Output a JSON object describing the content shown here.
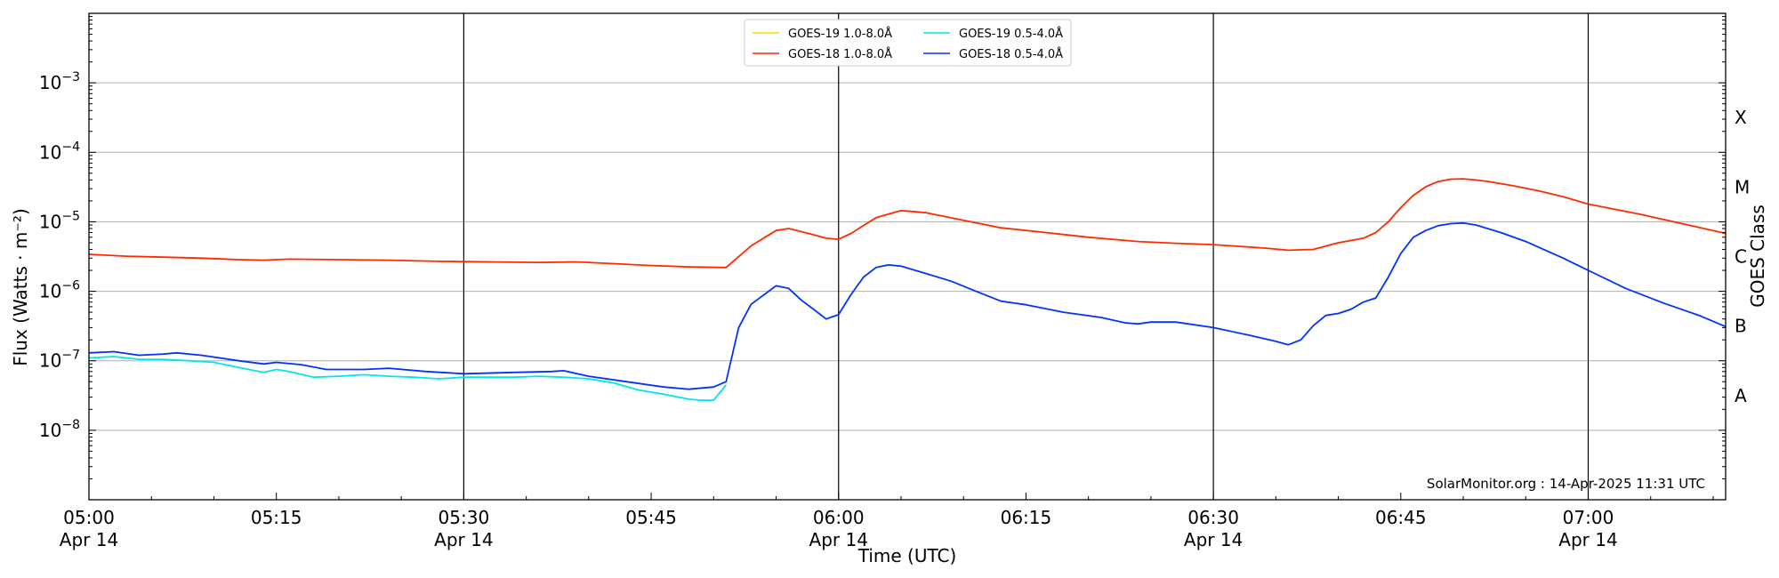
{
  "chart_data": {
    "type": "line",
    "ylabel": "Flux (Watts · m⁻²)",
    "xlabel": "Time (UTC)",
    "right_ylabel": "GOES Class",
    "watermark": "SolarMonitor.org : 14-Apr-2025 11:31 UTC",
    "y_scale": "log",
    "ylim": [
      1e-09,
      0.01
    ],
    "xlim": [
      "05:00",
      "07:11"
    ],
    "grid": "horizontal",
    "legend_position": "top-center",
    "y_ticks": [
      {
        "value": 1e-08,
        "base": "10",
        "exp": "−8"
      },
      {
        "value": 1e-07,
        "base": "10",
        "exp": "−7"
      },
      {
        "value": 1e-06,
        "base": "10",
        "exp": "−6"
      },
      {
        "value": 1e-05,
        "base": "10",
        "exp": "−5"
      },
      {
        "value": 0.0001,
        "base": "10",
        "exp": "−4"
      },
      {
        "value": 0.001,
        "base": "10",
        "exp": "−3"
      }
    ],
    "x_ticks": [
      {
        "time": "05:00",
        "label": "05:00",
        "sub": "Apr 14"
      },
      {
        "time": "05:15",
        "label": "05:15",
        "sub": ""
      },
      {
        "time": "05:30",
        "label": "05:30",
        "sub": "Apr 14"
      },
      {
        "time": "05:45",
        "label": "05:45",
        "sub": ""
      },
      {
        "time": "06:00",
        "label": "06:00",
        "sub": "Apr 14"
      },
      {
        "time": "06:15",
        "label": "06:15",
        "sub": ""
      },
      {
        "time": "06:30",
        "label": "06:30",
        "sub": "Apr 14"
      },
      {
        "time": "06:45",
        "label": "06:45",
        "sub": ""
      },
      {
        "time": "07:00",
        "label": "07:00",
        "sub": "Apr 14"
      }
    ],
    "vertical_lines": [
      "05:30",
      "06:00",
      "06:30",
      "07:00"
    ],
    "goes_classes": [
      {
        "label": "A",
        "flux": 1e-08
      },
      {
        "label": "B",
        "flux": 1e-07
      },
      {
        "label": "C",
        "flux": 1e-06
      },
      {
        "label": "M",
        "flux": 1e-05
      },
      {
        "label": "X",
        "flux": 0.0001
      }
    ],
    "series": [
      {
        "name": "GOES-19 1.0-8.0Å",
        "color": "#ffd700",
        "x": [],
        "y": []
      },
      {
        "name": "GOES-18 1.0-8.0Å",
        "color": "#ff2a00",
        "x": [
          "05:00",
          "05:03",
          "05:06",
          "05:09",
          "05:12",
          "05:14",
          "05:16",
          "05:20",
          "05:24",
          "05:28",
          "05:32",
          "05:36",
          "05:39",
          "05:42",
          "05:45",
          "05:48",
          "05:51",
          "05:53",
          "05:55",
          "05:56",
          "05:58",
          "05:59",
          "06:00",
          "06:01",
          "06:03",
          "06:05",
          "06:07",
          "06:10",
          "06:13",
          "06:16",
          "06:20",
          "06:24",
          "06:27",
          "06:30",
          "06:34",
          "06:36",
          "06:38",
          "06:40",
          "06:42",
          "06:43",
          "06:44",
          "06:45",
          "06:46",
          "06:47",
          "06:48",
          "06:49",
          "06:50",
          "06:51",
          "06:52",
          "06:54",
          "06:56",
          "06:58",
          "07:00",
          "07:04",
          "07:08",
          "07:11"
        ],
        "y": [
          3.4e-06,
          3.2e-06,
          3.1e-06,
          3e-06,
          2.85e-06,
          2.8e-06,
          2.9e-06,
          2.85e-06,
          2.8e-06,
          2.7e-06,
          2.65e-06,
          2.6e-06,
          2.65e-06,
          2.5e-06,
          2.35e-06,
          2.25e-06,
          2.2e-06,
          4.5e-06,
          7.5e-06,
          8e-06,
          6.5e-06,
          5.8e-06,
          5.6e-06,
          6.8e-06,
          1.15e-05,
          1.45e-05,
          1.35e-05,
          1.05e-05,
          8.2e-06,
          7.2e-06,
          6e-06,
          5.2e-06,
          4.9e-06,
          4.7e-06,
          4.2e-06,
          3.9e-06,
          4e-06,
          5e-06,
          5.8e-06,
          7e-06,
          1e-05,
          1.6e-05,
          2.4e-05,
          3.2e-05,
          3.8e-05,
          4.1e-05,
          4.15e-05,
          4e-05,
          3.8e-05,
          3.3e-05,
          2.8e-05,
          2.3e-05,
          1.8e-05,
          1.3e-05,
          9e-06,
          6.8e-06
        ]
      },
      {
        "name": "GOES-19 0.5-4.0Å",
        "color": "#00e5ee",
        "x": [
          "05:00",
          "05:02",
          "05:04",
          "05:06",
          "05:08",
          "05:10",
          "05:12",
          "05:14",
          "05:15",
          "05:16",
          "05:18",
          "05:20",
          "05:22",
          "05:24",
          "05:26",
          "05:28",
          "05:30",
          "05:32",
          "05:34",
          "05:36",
          "05:38",
          "05:40",
          "05:42",
          "05:44",
          "05:46",
          "05:48",
          "05:49",
          "05:50",
          "05:51"
        ],
        "y": [
          1.1e-07,
          1.15e-07,
          1.05e-07,
          1.05e-07,
          1e-07,
          9.5e-08,
          8e-08,
          6.8e-08,
          7.5e-08,
          7e-08,
          5.8e-08,
          6e-08,
          6.3e-08,
          6e-08,
          5.8e-08,
          5.5e-08,
          5.8e-08,
          5.8e-08,
          5.8e-08,
          6e-08,
          5.8e-08,
          5.5e-08,
          4.8e-08,
          3.8e-08,
          3.3e-08,
          2.8e-08,
          2.7e-08,
          2.7e-08,
          4.5e-08
        ]
      },
      {
        "name": "GOES-18 0.5-4.0Å",
        "color": "#0033ff",
        "x": [
          "05:00",
          "05:02",
          "05:04",
          "05:06",
          "05:07",
          "05:09",
          "05:12",
          "05:14",
          "05:15",
          "05:17",
          "05:19",
          "05:22",
          "05:24",
          "05:27",
          "05:30",
          "05:34",
          "05:37",
          "05:38",
          "05:40",
          "05:43",
          "05:46",
          "05:48",
          "05:50",
          "05:51",
          "05:52",
          "05:53",
          "05:55",
          "05:56",
          "05:57",
          "05:58",
          "05:59",
          "06:00",
          "06:01",
          "06:02",
          "06:03",
          "06:04",
          "06:05",
          "06:07",
          "06:09",
          "06:11",
          "06:13",
          "06:15",
          "06:18",
          "06:21",
          "06:23",
          "06:24",
          "06:25",
          "06:27",
          "06:30",
          "06:33",
          "06:35",
          "06:36",
          "06:37",
          "06:38",
          "06:39",
          "06:40",
          "06:41",
          "06:42",
          "06:43",
          "06:44",
          "06:45",
          "06:46",
          "06:47",
          "06:48",
          "06:49",
          "06:50",
          "06:51",
          "06:53",
          "06:55",
          "06:58",
          "07:00",
          "07:03",
          "07:06",
          "07:09",
          "07:11"
        ],
        "y": [
          1.3e-07,
          1.35e-07,
          1.2e-07,
          1.25e-07,
          1.3e-07,
          1.2e-07,
          1e-07,
          9e-08,
          9.5e-08,
          8.8e-08,
          7.5e-08,
          7.5e-08,
          7.8e-08,
          7e-08,
          6.5e-08,
          6.8e-08,
          7e-08,
          7.2e-08,
          6e-08,
          5e-08,
          4.2e-08,
          3.9e-08,
          4.2e-08,
          5e-08,
          3e-07,
          6.5e-07,
          1.2e-06,
          1.1e-06,
          7.5e-07,
          5.5e-07,
          4e-07,
          4.6e-07,
          9e-07,
          1.6e-06,
          2.2e-06,
          2.4e-06,
          2.3e-06,
          1.8e-06,
          1.4e-06,
          1e-06,
          7.2e-07,
          6.4e-07,
          5e-07,
          4.2e-07,
          3.5e-07,
          3.4e-07,
          3.6e-07,
          3.6e-07,
          3e-07,
          2.3e-07,
          1.9e-07,
          1.7e-07,
          2e-07,
          3.2e-07,
          4.5e-07,
          4.8e-07,
          5.5e-07,
          7e-07,
          8e-07,
          1.6e-06,
          3.5e-06,
          6e-06,
          7.5e-06,
          8.8e-06,
          9.4e-06,
          9.6e-06,
          9e-06,
          7e-06,
          5.2e-06,
          3e-06,
          2e-06,
          1.1e-06,
          6.8e-07,
          4.4e-07,
          3.1e-07
        ]
      }
    ]
  }
}
